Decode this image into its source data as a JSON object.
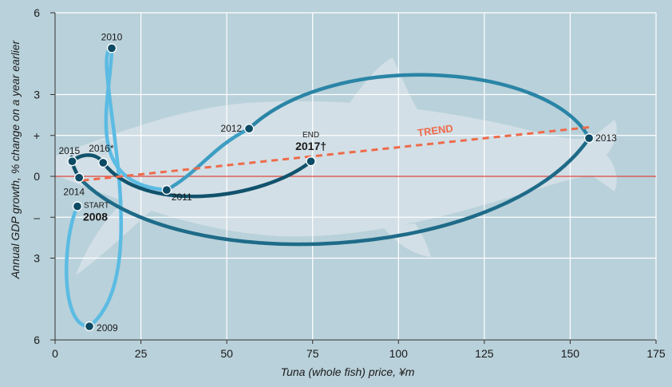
{
  "chart_data": {
    "type": "scatter",
    "title": "",
    "xlabel": "Tuna (whole fish) price, ¥m",
    "ylabel": "Annual GDP growth, % change on a year earlier",
    "xlim": [
      0,
      175
    ],
    "ylim": [
      -6,
      6
    ],
    "xticks": [
      0,
      25,
      50,
      75,
      100,
      125,
      150,
      175
    ],
    "xtick_labels": [
      "0",
      "25",
      "50",
      "75",
      "100",
      "125",
      "150",
      "175"
    ],
    "yticks": [
      6,
      3,
      1.5,
      0,
      -1.5,
      -3,
      -6
    ],
    "ytick_labels": [
      "6",
      "3",
      "+",
      "0",
      "–",
      "3",
      "6"
    ],
    "grid": true,
    "trend_label": "TREND",
    "start_label": "START",
    "end_label": "END",
    "series": [
      {
        "points": [
          {
            "label": "2008",
            "x": 6.5,
            "y": -1.1
          },
          {
            "label": "2009",
            "x": 10,
            "y": -5.5
          },
          {
            "label": "2010",
            "x": 16.5,
            "y": 4.7
          },
          {
            "label": "2011",
            "x": 32.5,
            "y": -0.5
          },
          {
            "label": "2012",
            "x": 56.5,
            "y": 1.75
          },
          {
            "label": "2013",
            "x": 155.5,
            "y": 1.4
          },
          {
            "label": "2014",
            "x": 7,
            "y": -0.05
          },
          {
            "label": "2015",
            "x": 5,
            "y": 0.55
          },
          {
            "label": "2016*",
            "x": 14,
            "y": 0.5
          },
          {
            "label": "2017†",
            "x": 74.5,
            "y": 0.55
          }
        ]
      }
    ],
    "trend": {
      "x1": 8,
      "y1": -0.15,
      "x2": 155.5,
      "y2": 1.8
    },
    "colors": {
      "background": "#b9d1da",
      "grid": "#ffffff",
      "zero_line": "#e0473e",
      "trend": "#ee6a4a",
      "seg_light": "#5bbbe3",
      "seg_mid": "#3d9dc2",
      "seg_teal": "#2a85a6",
      "seg_dark": "#1e6b88",
      "seg_darkest": "#11526c",
      "marker": "#0d4a63",
      "fish": "#d2dfe6"
    }
  }
}
